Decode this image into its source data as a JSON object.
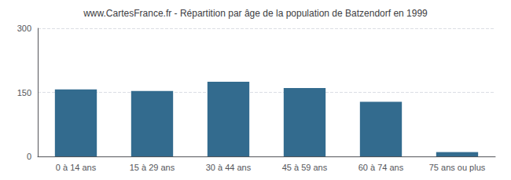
{
  "chart_data": {
    "type": "bar",
    "title": "www.CartesFrance.fr - Répartition par âge de la population de Batzendorf en 1999",
    "categories": [
      "0 à 14 ans",
      "15 à 29 ans",
      "30 à 44 ans",
      "45 à 59 ans",
      "60 à 74 ans",
      "75 ans ou plus"
    ],
    "values": [
      157,
      153,
      175,
      160,
      128,
      10
    ],
    "color": "#336b8e",
    "ylim": [
      0,
      300
    ],
    "yticks": [
      0,
      150,
      300
    ],
    "grid": true
  }
}
